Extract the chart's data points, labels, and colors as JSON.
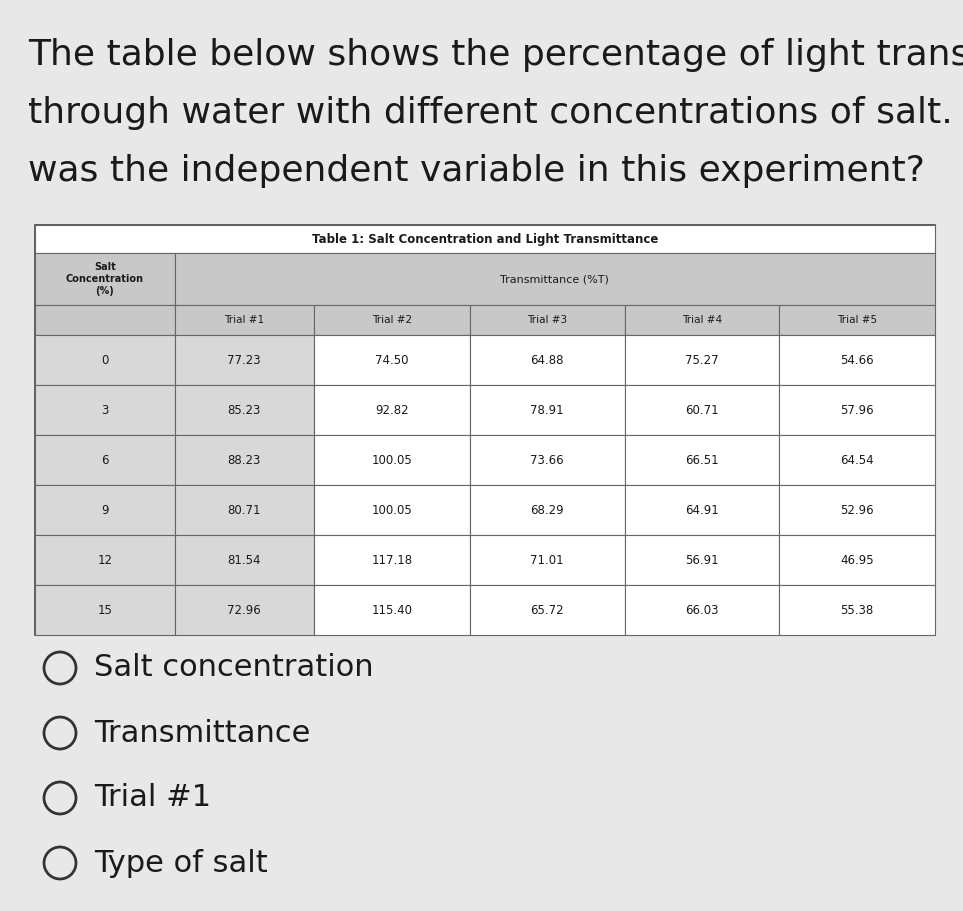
{
  "question_text_lines": [
    "The table below shows the percentage of light transmitted",
    "through water with different concentrations of salt.  What",
    "was the independent variable in this experiment?"
  ],
  "table_title": "Table 1: Salt Concentration and Light Transmittance",
  "col_header_left": "Salt\nConcentration\n(%)",
  "col_header_group": "Transmittance (%T)",
  "trial_headers": [
    "Trial #1",
    "Trial #2",
    "Trial #3",
    "Trial #4",
    "Trial #5"
  ],
  "rows": [
    [
      "0",
      "77.23",
      "74.50",
      "64.88",
      "75.27",
      "54.66"
    ],
    [
      "3",
      "85.23",
      "92.82",
      "78.91",
      "60.71",
      "57.96"
    ],
    [
      "6",
      "88.23",
      "100.05",
      "73.66",
      "66.51",
      "64.54"
    ],
    [
      "9",
      "80.71",
      "100.05",
      "68.29",
      "64.91",
      "52.96"
    ],
    [
      "12",
      "81.54",
      "117.18",
      "71.01",
      "56.91",
      "46.95"
    ],
    [
      "15",
      "72.96",
      "115.40",
      "65.72",
      "66.03",
      "55.38"
    ]
  ],
  "options": [
    "Salt concentration",
    "Transmittance",
    "Trial #1",
    "Type of salt"
  ],
  "bg_color": "#e8e8e8",
  "table_bg": "#ffffff",
  "cell_shaded": "#c8c8c8",
  "cell_light_shaded": "#d8d8d8",
  "question_font_size": 26,
  "option_font_size": 22,
  "table_font_size": 8.5,
  "header_font_size": 7.5
}
